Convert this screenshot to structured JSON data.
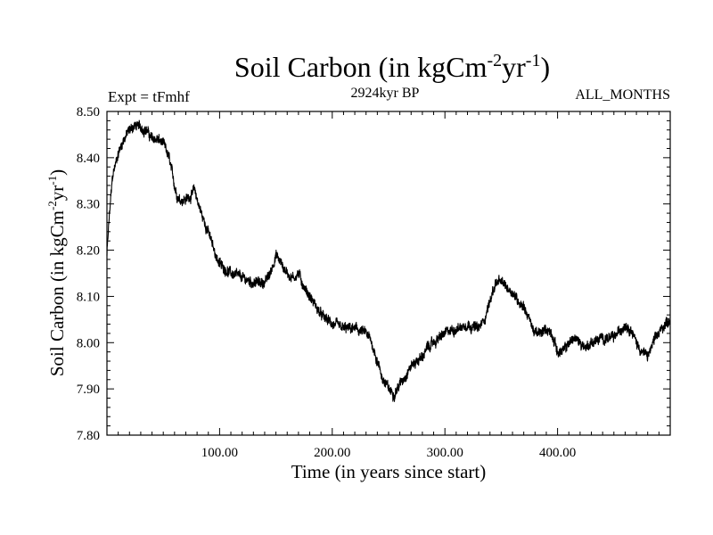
{
  "chart_data": {
    "type": "line",
    "title": "Soil Carbon (in kgCm",
    "title_sup1": "-2",
    "title_mid": "yr",
    "title_sup2": "-1",
    "title_end": ")",
    "subtitle_left": "Expt = tFmhf",
    "subtitle_center": "2924kyr BP",
    "subtitle_right": "ALL_MONTHS",
    "xlabel": "Time (in years since start)",
    "ylabel": "Soil Carbon (in kgCm",
    "ylabel_sup1": "-2",
    "ylabel_mid": "yr",
    "ylabel_sup2": "-1",
    "ylabel_end": ")",
    "xlim": [
      0,
      500
    ],
    "ylim": [
      7.8,
      8.5
    ],
    "x_ticks": [
      100,
      200,
      300,
      400
    ],
    "x_tick_labels": [
      "100.00",
      "200.00",
      "300.00",
      "400.00"
    ],
    "y_ticks": [
      7.8,
      7.9,
      8.0,
      8.1,
      8.2,
      8.3,
      8.4,
      8.5
    ],
    "y_tick_labels": [
      "7.80",
      "7.90",
      "8.00",
      "8.10",
      "8.20",
      "8.30",
      "8.40",
      "8.50"
    ],
    "series": [
      {
        "name": "Soil Carbon",
        "noise_amplitude": 0.012,
        "x": [
          0,
          2,
          5,
          10,
          15,
          20,
          25,
          30,
          35,
          40,
          45,
          50,
          55,
          60,
          62,
          65,
          70,
          75,
          78,
          80,
          85,
          90,
          95,
          100,
          110,
          120,
          130,
          140,
          145,
          150,
          155,
          160,
          165,
          170,
          175,
          180,
          185,
          190,
          200,
          210,
          220,
          230,
          235,
          240,
          245,
          250,
          255,
          260,
          265,
          270,
          280,
          285,
          290,
          295,
          300,
          310,
          320,
          330,
          335,
          340,
          345,
          350,
          355,
          360,
          365,
          370,
          375,
          380,
          385,
          390,
          395,
          400,
          405,
          410,
          415,
          420,
          425,
          430,
          440,
          450,
          460,
          465,
          470,
          475,
          480,
          485,
          490,
          495,
          500
        ],
        "y": [
          8.19,
          8.27,
          8.36,
          8.41,
          8.44,
          8.46,
          8.47,
          8.465,
          8.46,
          8.44,
          8.44,
          8.43,
          8.4,
          8.34,
          8.32,
          8.31,
          8.31,
          8.32,
          8.33,
          8.31,
          8.27,
          8.24,
          8.2,
          8.17,
          8.15,
          8.14,
          8.13,
          8.13,
          8.15,
          8.19,
          8.17,
          8.15,
          8.14,
          8.15,
          8.12,
          8.1,
          8.08,
          8.06,
          8.04,
          8.03,
          8.03,
          8.02,
          8.0,
          7.96,
          7.92,
          7.9,
          7.89,
          7.91,
          7.93,
          7.95,
          7.97,
          7.99,
          8.0,
          8.01,
          8.02,
          8.03,
          8.04,
          8.03,
          8.05,
          8.09,
          8.13,
          8.13,
          8.12,
          8.11,
          8.09,
          8.08,
          8.05,
          8.02,
          8.02,
          8.03,
          8.02,
          7.98,
          7.98,
          8.0,
          8.01,
          8.0,
          7.99,
          8.0,
          8.01,
          8.01,
          8.04,
          8.03,
          8.0,
          7.98,
          7.97,
          8.0,
          8.02,
          8.04,
          8.05
        ]
      }
    ]
  }
}
